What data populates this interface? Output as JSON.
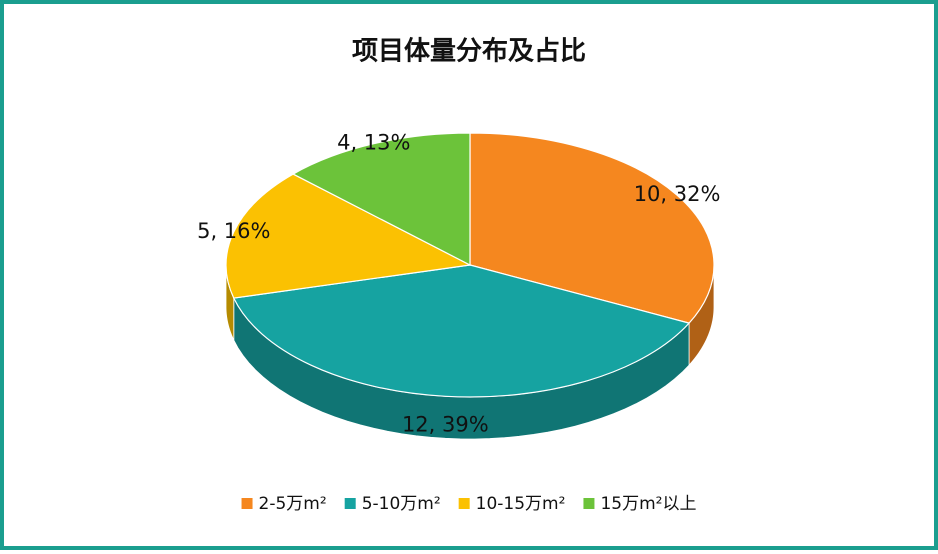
{
  "chart_data": {
    "type": "pie",
    "title": "项目体量分布及占比",
    "categories": [
      "2-5万m²",
      "5-10万m²",
      "10-15万m²",
      "15万m²以上"
    ],
    "values": [
      10,
      12,
      5,
      4
    ],
    "value_labels": [
      "10, 32%",
      "12, 39%",
      "5, 16%",
      "4, 13%"
    ],
    "colors": [
      "#f5871f",
      "#16a3a1",
      "#fbc102",
      "#6cc33a"
    ],
    "legend": "bottom"
  }
}
